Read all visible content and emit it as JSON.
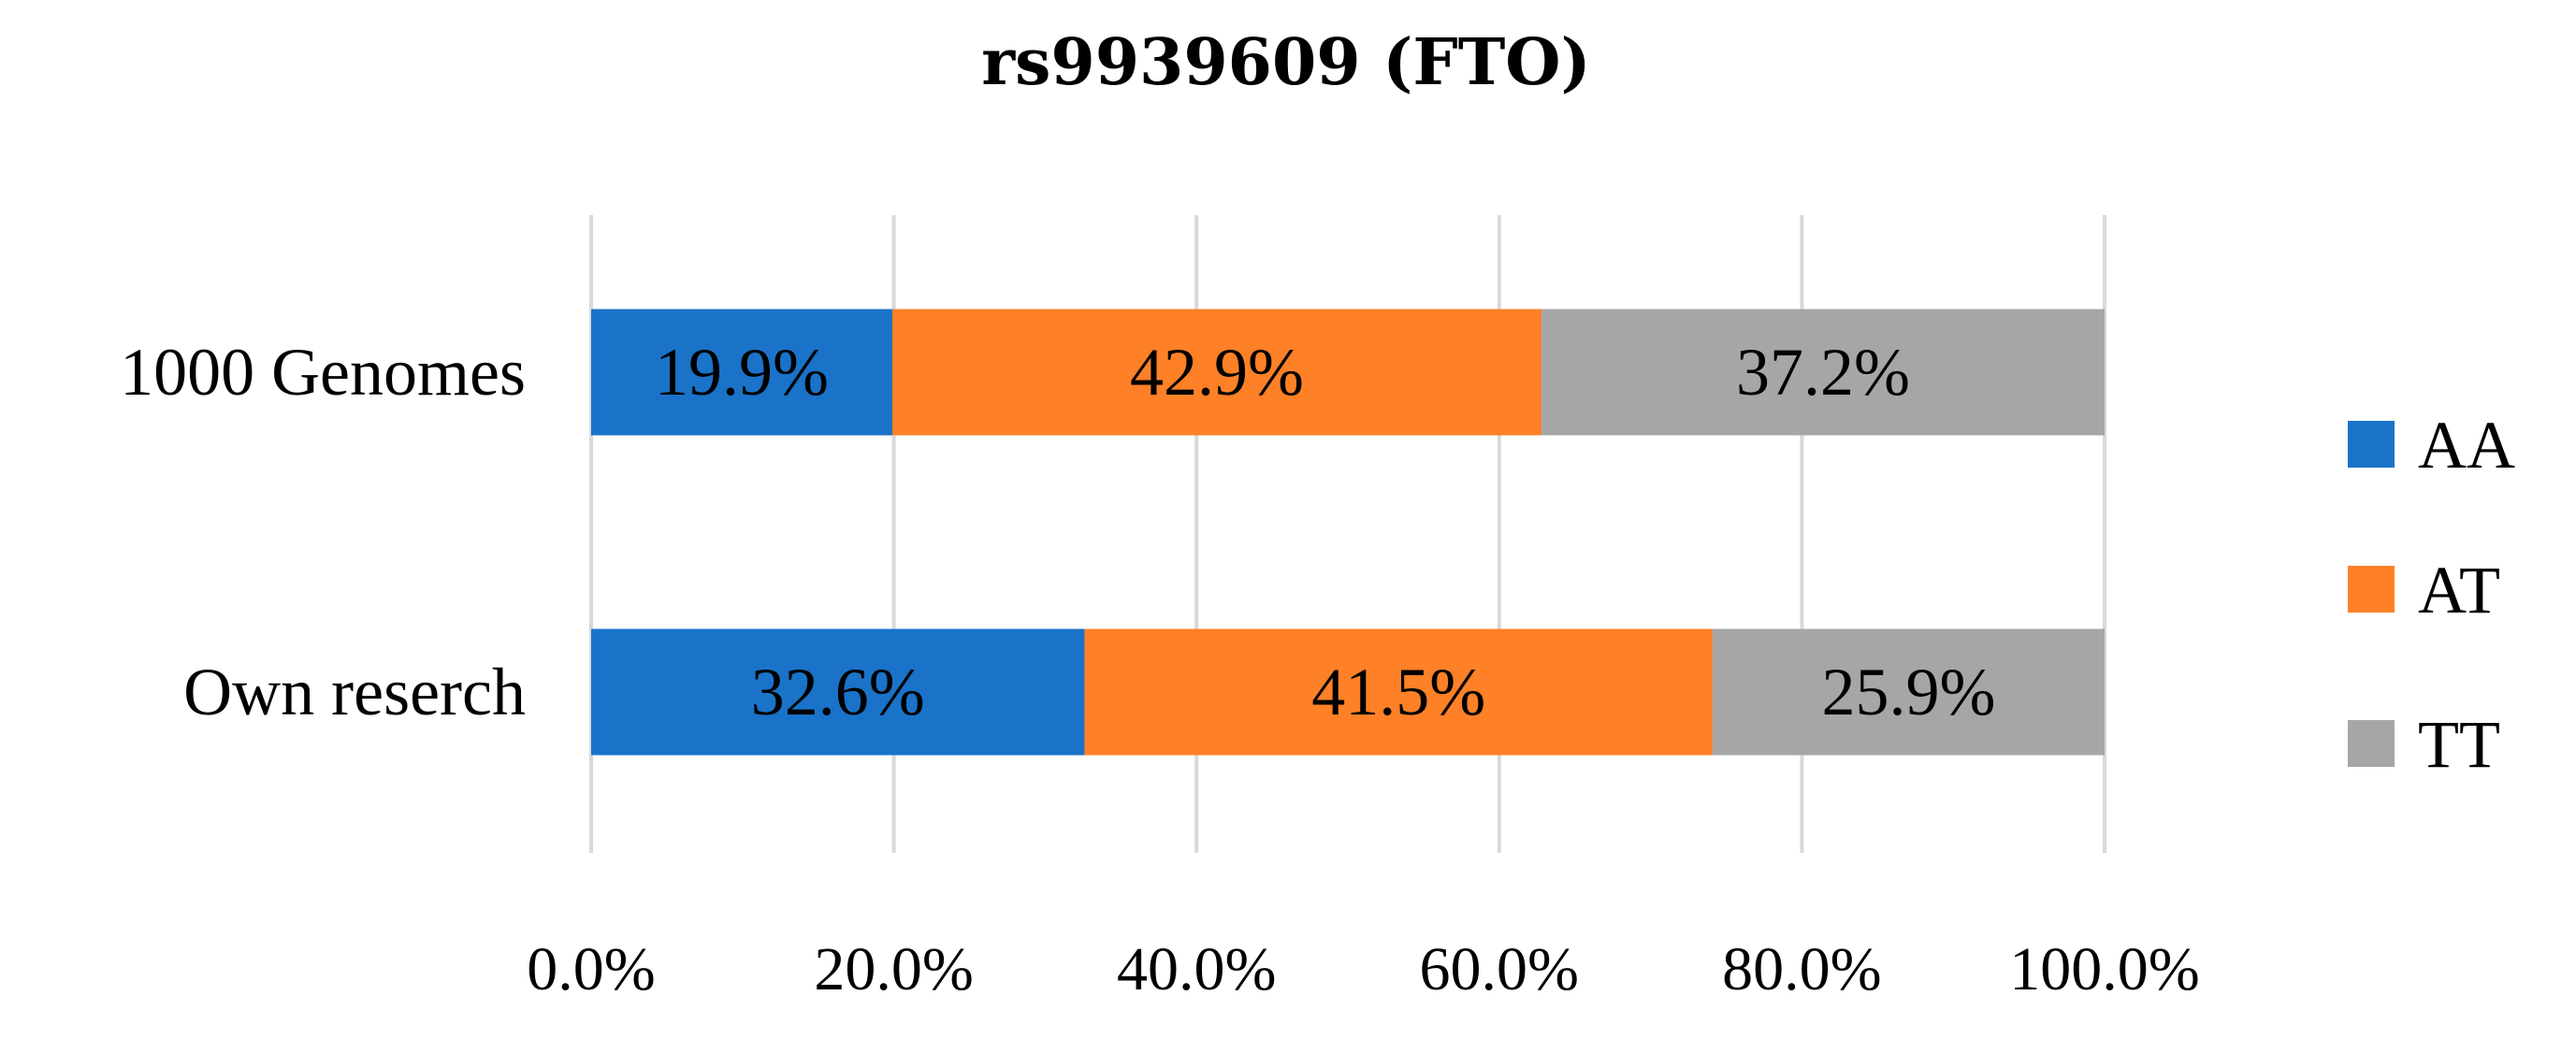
{
  "chart_data": {
    "type": "bar",
    "orientation": "horizontal",
    "stacked": true,
    "title": "rs9939609 (FTO)",
    "xlabel": "",
    "ylabel": "",
    "xlim": [
      0,
      100
    ],
    "x_ticks": [
      0,
      20,
      40,
      60,
      80,
      100
    ],
    "x_tick_labels": [
      "0.0%",
      "20.0%",
      "40.0%",
      "60.0%",
      "80.0%",
      "100.0%"
    ],
    "grid": "vertical",
    "legend_position": "right",
    "categories": [
      "1000 Genomes",
      "Own reserch"
    ],
    "series": [
      {
        "name": "AA",
        "color": "#1a73c9",
        "values": [
          19.9,
          32.6
        ],
        "labels": [
          "19.9%",
          "32.6%"
        ]
      },
      {
        "name": "AT",
        "color": "#fe8027",
        "values": [
          42.9,
          41.5
        ],
        "labels": [
          "42.9%",
          "41.5%"
        ]
      },
      {
        "name": "TT",
        "color": "#a6a6a6",
        "values": [
          37.2,
          25.9
        ],
        "labels": [
          "37.2%",
          "25.9%"
        ]
      }
    ]
  }
}
